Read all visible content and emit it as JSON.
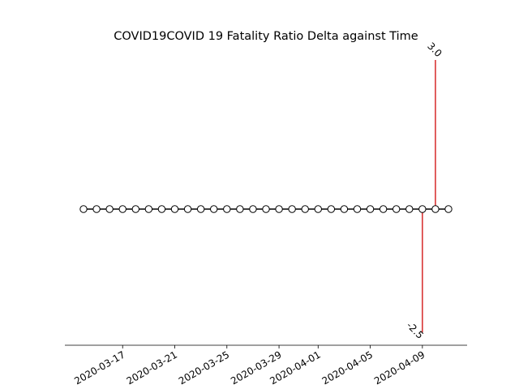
{
  "chart_data": {
    "type": "timeline",
    "title": "COVID19COVID 19 Fatality Ratio Delta against Time",
    "xlabel": "",
    "ylabel": "",
    "x_tick_labels": [
      "2020-03-17",
      "2020-03-21",
      "2020-03-25",
      "2020-03-29",
      "2020-04-01",
      "2020-04-05",
      "2020-04-09"
    ],
    "dates": [
      "2020-03-14",
      "2020-03-15",
      "2020-03-16",
      "2020-03-17",
      "2020-03-18",
      "2020-03-19",
      "2020-03-20",
      "2020-03-21",
      "2020-03-22",
      "2020-03-23",
      "2020-03-24",
      "2020-03-25",
      "2020-03-26",
      "2020-03-27",
      "2020-03-28",
      "2020-03-29",
      "2020-03-30",
      "2020-03-31",
      "2020-04-01",
      "2020-04-02",
      "2020-04-03",
      "2020-04-04",
      "2020-04-05",
      "2020-04-06",
      "2020-04-07",
      "2020-04-08",
      "2020-04-09",
      "2020-04-10",
      "2020-04-11"
    ],
    "events": [
      {
        "date": "2020-04-09",
        "value": -2.5,
        "label": "-2.5"
      },
      {
        "date": "2020-04-10",
        "value": 3.0,
        "label": "3.0"
      }
    ],
    "ylim": [
      -2.75,
      3.25
    ],
    "grid": false,
    "legend": "none",
    "colors": {
      "stem": "#d62728",
      "baseline": "#000000",
      "marker_fill": "#ffffff",
      "marker_edge": "#000000"
    }
  }
}
